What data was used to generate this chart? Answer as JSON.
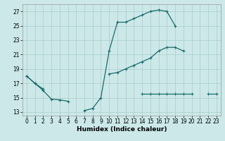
{
  "xlabel": "Humidex (Indice chaleur)",
  "bg_color": "#cce8e8",
  "grid_color": "#aacccc",
  "line_color": "#1a6b6b",
  "xlim": [
    -0.5,
    23.5
  ],
  "ylim": [
    12.5,
    28.0
  ],
  "yticks": [
    13,
    15,
    17,
    19,
    21,
    23,
    25,
    27
  ],
  "xticks": [
    0,
    1,
    2,
    3,
    4,
    5,
    6,
    7,
    8,
    9,
    10,
    11,
    12,
    13,
    14,
    15,
    16,
    17,
    18,
    19,
    20,
    21,
    22,
    23
  ],
  "line1_y": [
    18.0,
    17.0,
    16.0,
    14.8,
    14.7,
    14.5,
    null,
    13.2,
    13.5,
    15.0,
    21.5,
    25.5,
    25.5,
    26.0,
    26.5,
    27.0,
    27.2,
    27.0,
    25.0,
    null,
    null,
    null,
    null,
    null
  ],
  "line2_y": [
    18.0,
    17.0,
    16.2,
    null,
    null,
    null,
    null,
    null,
    null,
    null,
    18.3,
    18.5,
    19.0,
    19.5,
    20.0,
    20.5,
    21.5,
    22.0,
    22.0,
    21.5,
    null,
    null,
    null,
    null
  ],
  "line3_y": [
    null,
    null,
    null,
    null,
    null,
    null,
    null,
    null,
    null,
    null,
    null,
    null,
    null,
    null,
    15.5,
    15.5,
    15.5,
    15.5,
    15.5,
    15.5,
    15.5,
    null,
    15.5,
    15.5
  ],
  "marker": "+",
  "markersize": 3,
  "linewidth": 0.9,
  "tick_fontsize": 5.5,
  "xlabel_fontsize": 6.5
}
